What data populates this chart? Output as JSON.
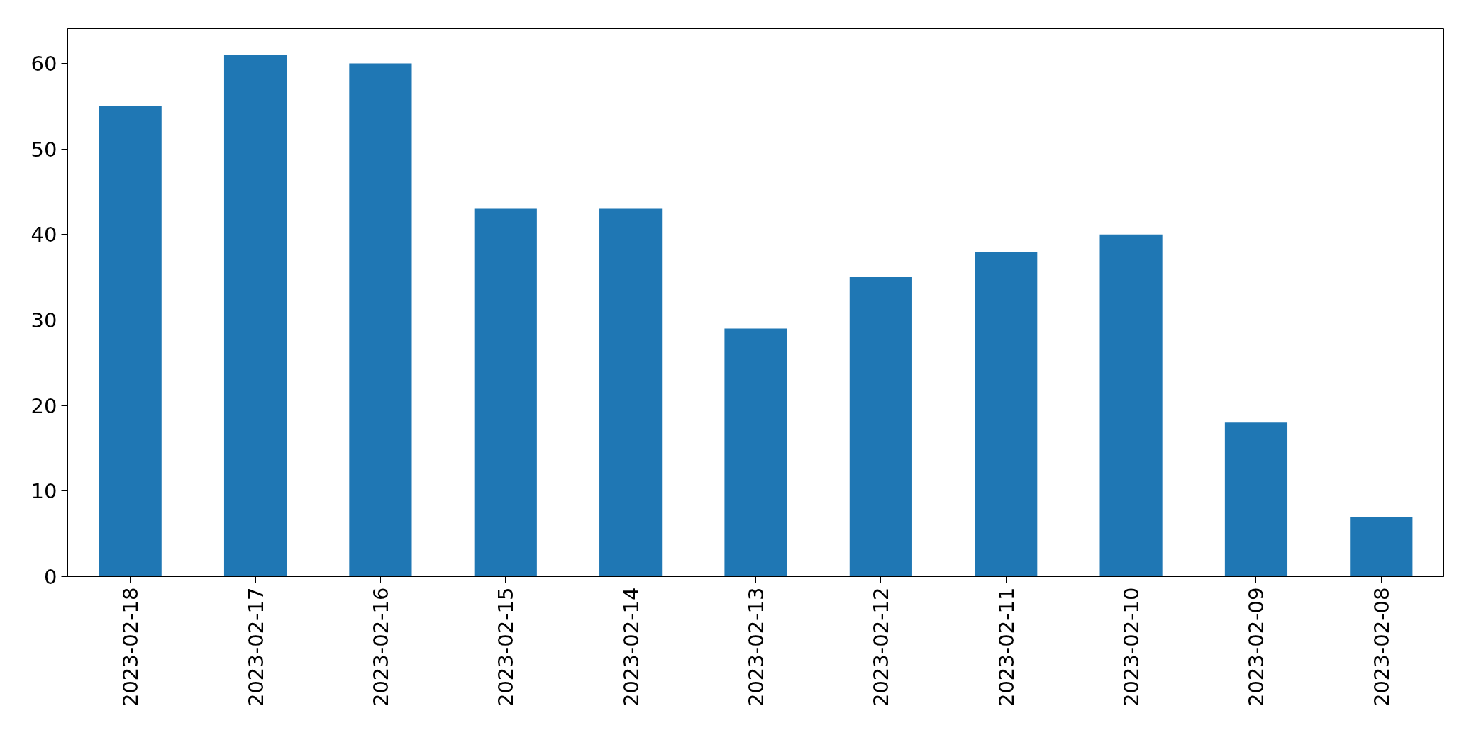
{
  "chart_data": {
    "type": "bar",
    "categories": [
      "2023-02-18",
      "2023-02-17",
      "2023-02-16",
      "2023-02-15",
      "2023-02-14",
      "2023-02-13",
      "2023-02-12",
      "2023-02-11",
      "2023-02-10",
      "2023-02-09",
      "2023-02-08"
    ],
    "values": [
      55,
      61,
      60,
      43,
      43,
      29,
      35,
      38,
      40,
      18,
      7
    ],
    "color": "#1f77b4",
    "ylim": [
      0,
      64.05
    ],
    "yticks": [
      0,
      10,
      20,
      30,
      40,
      50,
      60
    ]
  }
}
